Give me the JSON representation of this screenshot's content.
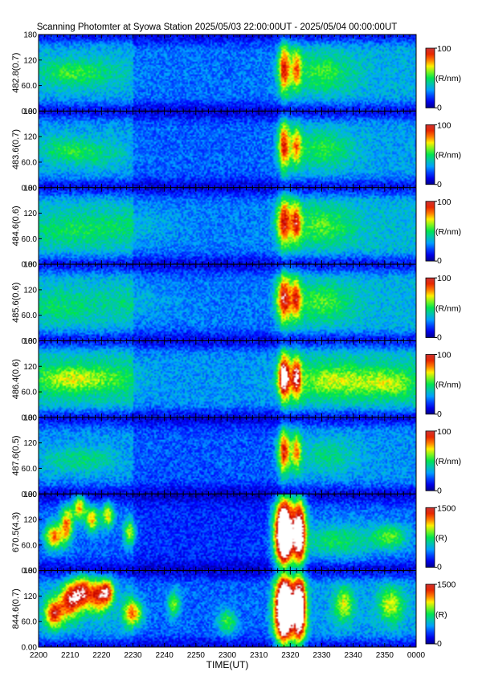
{
  "chart_data": {
    "type": "heatmap",
    "title": "Scanning Photomter at Syowa Station 2025/05/03 22:00:00UT - 2025/05/04 00:00:00UT",
    "xlabel": "TIME(UT)",
    "x_ticks": [
      "2200",
      "2210",
      "2220",
      "2230",
      "2240",
      "2250",
      "2300",
      "2310",
      "2320",
      "2330",
      "2340",
      "2350",
      "0000"
    ],
    "x_range_minutes": [
      0,
      120
    ],
    "y_ticks": [
      "0.00",
      "60.0",
      "120",
      "180"
    ],
    "ylim": [
      0,
      180
    ],
    "panels": [
      {
        "ylabel": "482.8(0.7)",
        "unit": "(R/nm)",
        "cmin": "0",
        "cmax": "100",
        "level": 0.32,
        "blobs": [
          [
            8,
            90,
            8,
            30,
            0.15
          ],
          [
            18,
            90,
            10,
            30,
            0.12
          ],
          [
            78,
            100,
            2,
            55,
            0.55
          ],
          [
            82,
            100,
            1.5,
            45,
            0.4
          ],
          [
            90,
            90,
            10,
            45,
            0.2
          ]
        ]
      },
      {
        "ylabel": "483.6(0.7)",
        "unit": "(R/nm)",
        "cmin": "0",
        "cmax": "100",
        "level": 0.3,
        "blobs": [
          [
            8,
            90,
            8,
            30,
            0.15
          ],
          [
            18,
            80,
            10,
            30,
            0.12
          ],
          [
            78,
            100,
            2,
            55,
            0.55
          ],
          [
            82,
            100,
            1.5,
            45,
            0.4
          ],
          [
            90,
            90,
            10,
            45,
            0.2
          ]
        ]
      },
      {
        "ylabel": "484.6(0.6)",
        "unit": "(R/nm)",
        "cmin": "0",
        "cmax": "100",
        "level": 0.34,
        "blobs": [
          [
            10,
            80,
            14,
            40,
            0.12
          ],
          [
            30,
            90,
            14,
            40,
            0.08
          ],
          [
            78,
            100,
            2.5,
            55,
            0.55
          ],
          [
            82,
            100,
            1.5,
            45,
            0.45
          ],
          [
            90,
            90,
            10,
            45,
            0.2
          ]
        ]
      },
      {
        "ylabel": "485.6(0.6)",
        "unit": "(R/nm)",
        "cmin": "0",
        "cmax": "100",
        "level": 0.33,
        "blobs": [
          [
            6,
            80,
            12,
            40,
            0.12
          ],
          [
            30,
            90,
            14,
            40,
            0.08
          ],
          [
            78,
            100,
            2.5,
            55,
            0.6
          ],
          [
            82,
            100,
            1.5,
            45,
            0.45
          ],
          [
            90,
            90,
            10,
            45,
            0.2
          ]
        ]
      },
      {
        "ylabel": "486.4(0.6)",
        "unit": "(R/nm)",
        "cmin": "0",
        "cmax": "100",
        "level": 0.38,
        "blobs": [
          [
            8,
            90,
            10,
            30,
            0.2
          ],
          [
            20,
            90,
            12,
            30,
            0.15
          ],
          [
            78,
            95,
            2,
            50,
            0.75
          ],
          [
            82,
            95,
            1.5,
            45,
            0.6
          ],
          [
            95,
            85,
            14,
            35,
            0.25
          ],
          [
            112,
            80,
            8,
            30,
            0.2
          ]
        ]
      },
      {
        "ylabel": "487.6(0.5)",
        "unit": "(R/nm)",
        "cmin": "0",
        "cmax": "100",
        "level": 0.28,
        "blobs": [
          [
            8,
            80,
            8,
            30,
            0.12
          ],
          [
            18,
            80,
            8,
            30,
            0.12
          ],
          [
            78,
            100,
            2,
            50,
            0.6
          ],
          [
            82,
            100,
            1.5,
            45,
            0.45
          ],
          [
            92,
            90,
            10,
            40,
            0.15
          ]
        ]
      },
      {
        "ylabel": "670.5(4.3)",
        "unit": "(R)",
        "cmin": "0",
        "cmax": "1500",
        "level": 0.22,
        "blobs": [
          [
            5,
            80,
            3,
            30,
            0.55
          ],
          [
            9,
            110,
            2,
            40,
            0.55
          ],
          [
            13,
            150,
            2,
            30,
            0.55
          ],
          [
            17,
            120,
            2,
            30,
            0.5
          ],
          [
            22,
            130,
            2,
            30,
            0.45
          ],
          [
            29,
            90,
            2,
            30,
            0.4
          ],
          [
            78,
            90,
            3,
            80,
            1.3
          ],
          [
            83,
            90,
            2,
            80,
            0.9
          ],
          [
            95,
            70,
            12,
            40,
            0.25
          ],
          [
            112,
            80,
            6,
            30,
            0.3
          ]
        ]
      },
      {
        "ylabel": "844.6(0.7)",
        "unit": "(R)",
        "cmin": "0",
        "cmax": "1500",
        "level": 0.3,
        "blobs": [
          [
            5,
            80,
            3,
            35,
            0.6
          ],
          [
            10,
            110,
            3,
            40,
            0.6
          ],
          [
            14,
            130,
            3,
            40,
            0.6
          ],
          [
            19,
            120,
            3,
            40,
            0.55
          ],
          [
            22,
            130,
            2,
            30,
            0.5
          ],
          [
            30,
            80,
            3,
            30,
            0.55
          ],
          [
            43,
            100,
            2,
            30,
            0.35
          ],
          [
            60,
            60,
            3,
            30,
            0.3
          ],
          [
            78,
            90,
            3,
            80,
            1.3
          ],
          [
            83,
            90,
            2,
            80,
            1.0
          ],
          [
            97,
            100,
            3,
            40,
            0.35
          ],
          [
            112,
            100,
            4,
            40,
            0.35
          ]
        ]
      }
    ]
  }
}
